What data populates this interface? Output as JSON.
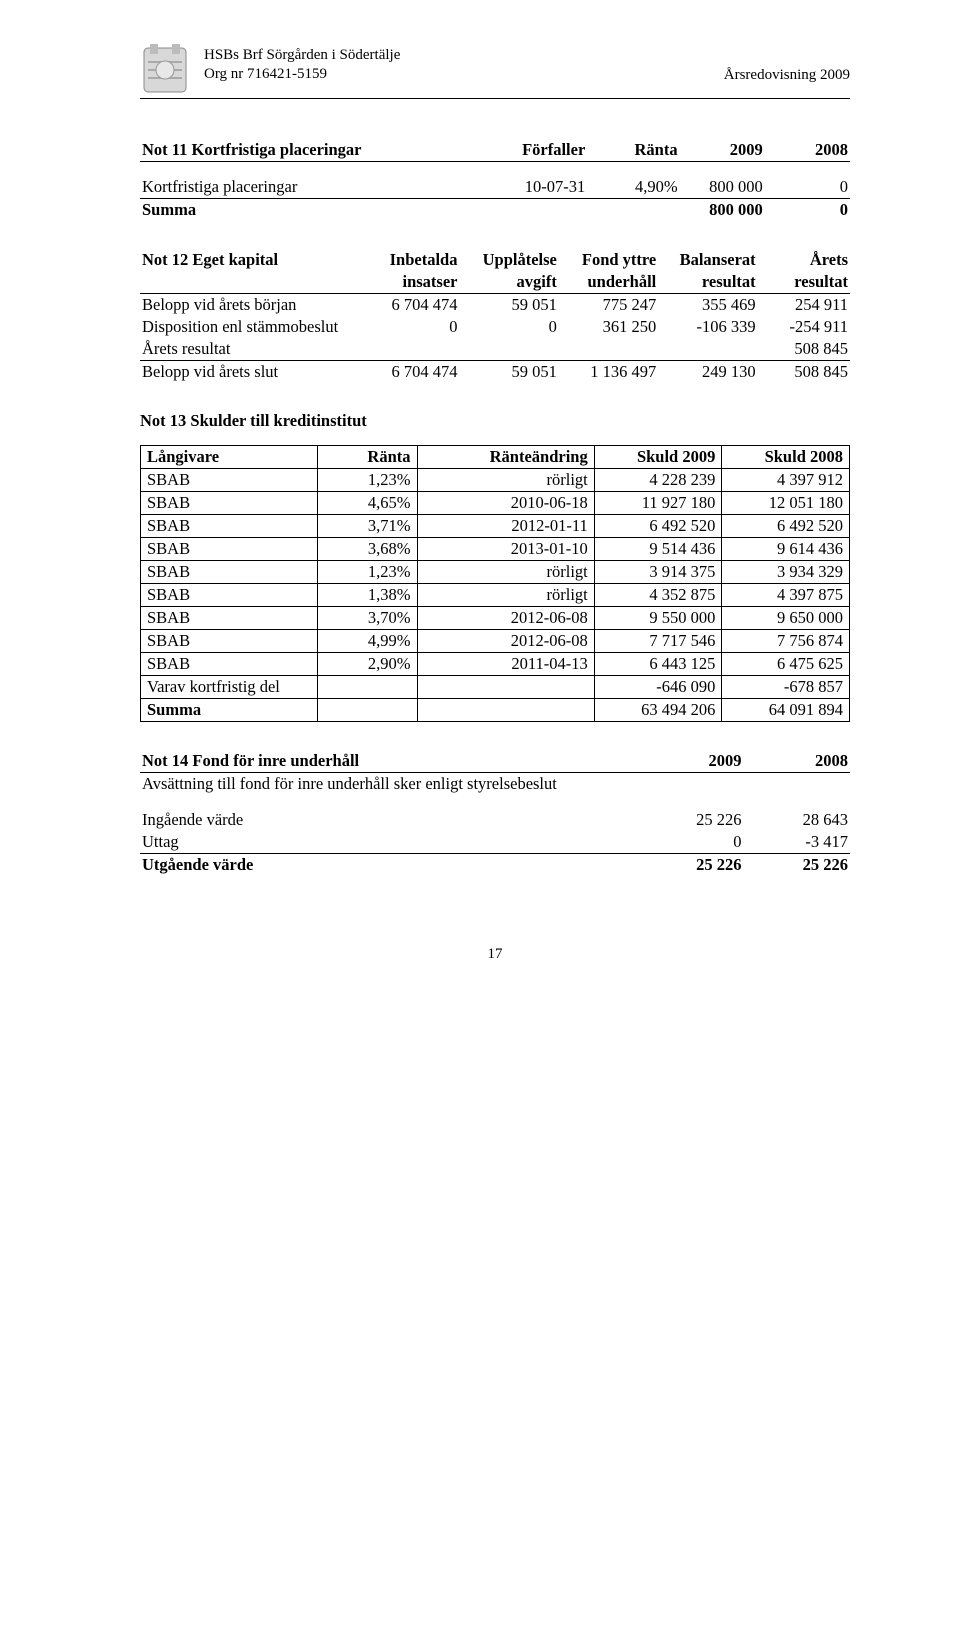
{
  "header": {
    "org_name": "HSBs Brf Sörgården i Södertälje",
    "org_nr": "Org nr 716421-5159",
    "right": "Årsredovisning 2009"
  },
  "not11": {
    "title": "Not 11 Kortfristiga placeringar",
    "col_forfaller": "Förfaller",
    "col_ranta": "Ränta",
    "col_2009": "2009",
    "col_2008": "2008",
    "row_label": "Kortfristiga placeringar",
    "row_forfaller": "10-07-31",
    "row_ranta": "4,90%",
    "row_2009": "800 000",
    "row_2008": "0",
    "summa_label": "Summa",
    "summa_2009": "800 000",
    "summa_2008": "0"
  },
  "not12": {
    "title": "Not 12 Eget kapital",
    "h_inbetalda1": "Inbetalda",
    "h_inbetalda2": "insatser",
    "h_upplatelse1": "Upplåtelse",
    "h_upplatelse2": "avgift",
    "h_fond1": "Fond yttre",
    "h_fond2": "underhåll",
    "h_bal1": "Balanserat",
    "h_bal2": "resultat",
    "h_arets1": "Årets",
    "h_arets2": "resultat",
    "r1_label": "Belopp vid årets början",
    "r1": [
      "6 704 474",
      "59 051",
      "775 247",
      "355 469",
      "254 911"
    ],
    "r2_label": "Disposition enl stämmobeslut",
    "r2": [
      "0",
      "0",
      "361 250",
      "-106 339",
      "-254 911"
    ],
    "r3_label": "Årets resultat",
    "r3_val": "508 845",
    "r4_label": "Belopp vid årets slut",
    "r4": [
      "6 704 474",
      "59 051",
      "1 136 497",
      "249 130",
      "508 845"
    ]
  },
  "not13": {
    "title": "Not 13 Skulder till kreditinstitut",
    "h_langivare": "Långivare",
    "h_ranta": "Ränta",
    "h_ranteandring": "Ränteändring",
    "h_skuld2009": "Skuld 2009",
    "h_skuld2008": "Skuld 2008",
    "rows": [
      [
        "SBAB",
        "1,23%",
        "rörligt",
        "4 228 239",
        "4 397 912"
      ],
      [
        "SBAB",
        "4,65%",
        "2010-06-18",
        "11 927 180",
        "12 051 180"
      ],
      [
        "SBAB",
        "3,71%",
        "2012-01-11",
        "6 492 520",
        "6 492 520"
      ],
      [
        "SBAB",
        "3,68%",
        "2013-01-10",
        "9 514 436",
        "9 614 436"
      ],
      [
        "SBAB",
        "1,23%",
        "rörligt",
        "3 914 375",
        "3 934 329"
      ],
      [
        "SBAB",
        "1,38%",
        "rörligt",
        "4 352 875",
        "4 397 875"
      ],
      [
        "SBAB",
        "3,70%",
        "2012-06-08",
        "9 550 000",
        "9 650 000"
      ],
      [
        "SBAB",
        "4,99%",
        "2012-06-08",
        "7 717 546",
        "7 756 874"
      ],
      [
        "SBAB",
        "2,90%",
        "2011-04-13",
        "6 443 125",
        "6 475 625"
      ]
    ],
    "varav_label": "Varav kortfristig del",
    "varav": [
      "-646 090",
      "-678 857"
    ],
    "summa_label": "Summa",
    "summa": [
      "63 494 206",
      "64 091 894"
    ]
  },
  "not14": {
    "title": "Not 14 Fond för inre underhåll",
    "col_2009": "2009",
    "col_2008": "2008",
    "note": "Avsättning till fond för inre underhåll sker enligt styrelsebeslut",
    "r1_label": "Ingående värde",
    "r1": [
      "25 226",
      "28 643"
    ],
    "r2_label": "Uttag",
    "r2": [
      "0",
      "-3 417"
    ],
    "r3_label": "Utgående värde",
    "r3": [
      "25 226",
      "25 226"
    ]
  },
  "page_number": "17"
}
